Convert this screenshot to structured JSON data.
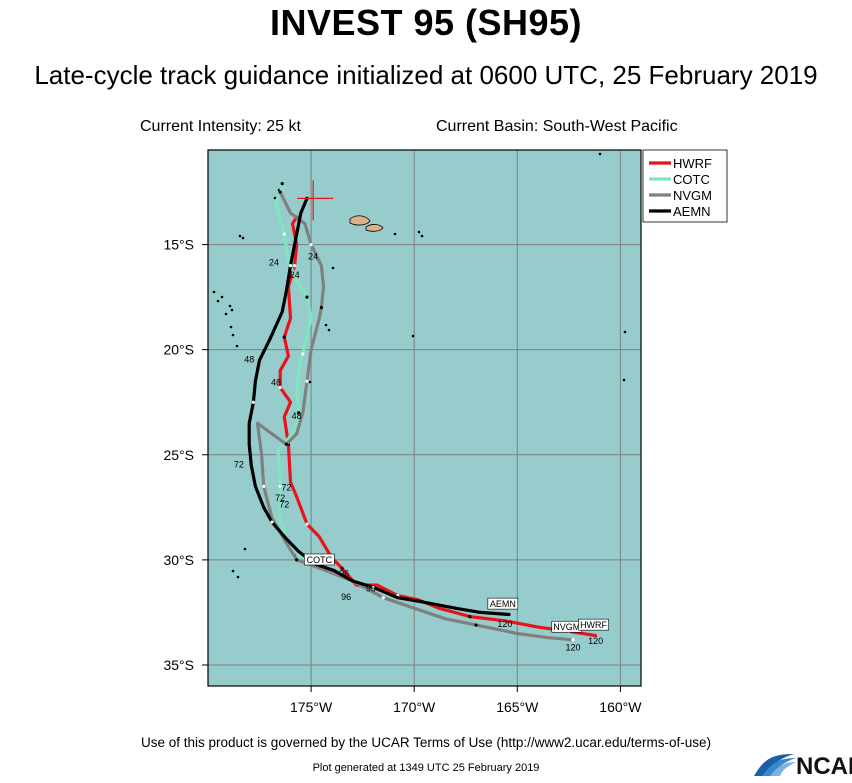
{
  "header": {
    "title": "INVEST 95 (SH95)",
    "subtitle": "Late-cycle track guidance initialized at 0600 UTC, 25 February 2019",
    "current_intensity": "Current Intensity: 25 kt",
    "current_basin": "Current Basin: South-West Pacific"
  },
  "footer": {
    "terms": "Use of this product is governed by the UCAR Terms of Use (http://www2.ucar.edu/terms-of-use)",
    "generated": "Plot generated at 1349 UTC 25 February 2019",
    "logo_text": "NCAR"
  },
  "colors": {
    "ocean": "#96cccc",
    "land": "#d9b28c",
    "grid": "#808080"
  },
  "chart_data": {
    "type": "line",
    "xlim": [
      -180,
      -159
    ],
    "ylim": [
      -36,
      -10.5
    ],
    "x_ticks": [
      -175,
      -170,
      -165,
      -160
    ],
    "x_tick_labels": [
      "175°W",
      "170°W",
      "165°W",
      "160°W"
    ],
    "y_ticks": [
      -15,
      -20,
      -25,
      -30,
      -35
    ],
    "y_tick_labels": [
      "15°S",
      "20°S",
      "25°S",
      "30°S",
      "35°S"
    ],
    "current_position": {
      "lon": -174.9,
      "lat": -12.8
    },
    "legend_position": "top-right",
    "series": [
      {
        "name": "HWRF",
        "color": "#e8141c",
        "points": [
          [
            -175.7,
            -13.7
          ],
          [
            -175.9,
            -14.0
          ],
          [
            -175.7,
            -15.0
          ],
          [
            -175.8,
            -16.0
          ],
          [
            -176.1,
            -17.0
          ],
          [
            -176.0,
            -18.5
          ],
          [
            -176.3,
            -19.4
          ],
          [
            -176.1,
            -20.3
          ],
          [
            -176.5,
            -21.0
          ],
          [
            -176.5,
            -21.8
          ],
          [
            -176.0,
            -22.5
          ],
          [
            -176.3,
            -23.2
          ],
          [
            -176.1,
            -24.5
          ],
          [
            -176.0,
            -26.3
          ],
          [
            -175.7,
            -27.0
          ],
          [
            -175.2,
            -28.3
          ],
          [
            -174.6,
            -28.9
          ],
          [
            -174.0,
            -29.9
          ],
          [
            -173.5,
            -30.4
          ],
          [
            -172.8,
            -31.2
          ],
          [
            -171.8,
            -31.2
          ],
          [
            -170.8,
            -31.7
          ],
          [
            -169.8,
            -31.9
          ],
          [
            -168.8,
            -32.3
          ],
          [
            -167.3,
            -32.7
          ],
          [
            -165.6,
            -32.9
          ],
          [
            -164.0,
            -33.2
          ],
          [
            -162.5,
            -33.4
          ],
          [
            -161.2,
            -33.6
          ]
        ],
        "hour_labels": [
          {
            "lon": -175.8,
            "lat": -16.6,
            "text": "24"
          },
          {
            "lon": -176.7,
            "lat": -21.7,
            "text": "48"
          },
          {
            "lon": -176.2,
            "lat": -26.7,
            "text": "72"
          },
          {
            "lon": -172.1,
            "lat": -31.5,
            "text": "96"
          },
          {
            "lon": -161.2,
            "lat": -34.0,
            "text": "120"
          }
        ]
      },
      {
        "name": "COTC",
        "color": "#7fe5c0",
        "points": [
          [
            -176.4,
            -12.1
          ],
          [
            -176.4,
            -12.3
          ],
          [
            -176.7,
            -13.0
          ],
          [
            -176.3,
            -14.5
          ],
          [
            -176.1,
            -15.8
          ],
          [
            -175.6,
            -16.9
          ],
          [
            -175.2,
            -17.5
          ],
          [
            -175.0,
            -18.5
          ],
          [
            -175.2,
            -19.3
          ],
          [
            -175.4,
            -20.2
          ],
          [
            -175.6,
            -21.0
          ],
          [
            -175.7,
            -22.0
          ],
          [
            -175.6,
            -23.0
          ],
          [
            -175.9,
            -24.0
          ],
          [
            -176.6,
            -24.8
          ],
          [
            -176.5,
            -26.5
          ],
          [
            -176.5,
            -28.0
          ],
          [
            -176.2,
            -29.0
          ],
          [
            -175.8,
            -29.8
          ],
          [
            -175.0,
            -30.0
          ]
        ],
        "hour_labels": [
          {
            "lon": -176.8,
            "lat": -16.0,
            "text": "24"
          },
          {
            "lon": -176.3,
            "lat": -27.5,
            "text": "72"
          }
        ],
        "tag": {
          "lon": -174.6,
          "lat": -30.1,
          "text": "COTC"
        }
      },
      {
        "name": "NVGM",
        "color": "#808080",
        "points": [
          [
            -176.5,
            -12.5
          ],
          [
            -176.0,
            -13.5
          ],
          [
            -175.3,
            -14.0
          ],
          [
            -175.0,
            -15.0
          ],
          [
            -174.5,
            -16.0
          ],
          [
            -174.4,
            -17.0
          ],
          [
            -174.5,
            -18.0
          ],
          [
            -174.6,
            -18.5
          ],
          [
            -175.0,
            -20.0
          ],
          [
            -175.2,
            -21.5
          ],
          [
            -175.4,
            -23.0
          ],
          [
            -175.7,
            -24.0
          ],
          [
            -176.2,
            -24.5
          ],
          [
            -177.6,
            -23.5
          ],
          [
            -177.4,
            -25.0
          ],
          [
            -177.3,
            -26.5
          ],
          [
            -176.9,
            -28.0
          ],
          [
            -176.2,
            -29.2
          ],
          [
            -175.7,
            -30.0
          ],
          [
            -174.3,
            -30.5
          ],
          [
            -173.0,
            -31.0
          ],
          [
            -171.5,
            -31.8
          ],
          [
            -170.0,
            -32.3
          ],
          [
            -168.5,
            -32.8
          ],
          [
            -167.0,
            -33.1
          ],
          [
            -165.0,
            -33.5
          ],
          [
            -163.5,
            -33.7
          ],
          [
            -162.3,
            -33.8
          ]
        ],
        "hour_labels": [
          {
            "lon": -174.9,
            "lat": -15.7,
            "text": "24"
          },
          {
            "lon": -175.7,
            "lat": -23.3,
            "text": "48"
          },
          {
            "lon": -176.5,
            "lat": -27.2,
            "text": "72"
          },
          {
            "lon": -173.4,
            "lat": -30.8,
            "text": "96"
          },
          {
            "lon": -162.3,
            "lat": -34.3,
            "text": "120"
          }
        ],
        "tag": {
          "lon": -162.6,
          "lat": -33.3,
          "text": "NVGM"
        }
      },
      {
        "name": "AEMN",
        "color": "#000000",
        "points": [
          [
            -175.2,
            -12.8
          ],
          [
            -175.5,
            -13.5
          ],
          [
            -175.8,
            -15.0
          ],
          [
            -176.0,
            -16.0
          ],
          [
            -176.2,
            -17.2
          ],
          [
            -176.4,
            -18.2
          ],
          [
            -177.0,
            -19.5
          ],
          [
            -177.5,
            -20.5
          ],
          [
            -177.7,
            -21.5
          ],
          [
            -177.8,
            -22.5
          ],
          [
            -178.0,
            -23.5
          ],
          [
            -178.0,
            -24.5
          ],
          [
            -177.9,
            -25.5
          ],
          [
            -177.7,
            -26.5
          ],
          [
            -177.3,
            -27.5
          ],
          [
            -176.9,
            -28.2
          ],
          [
            -176.2,
            -29.0
          ],
          [
            -175.6,
            -29.6
          ],
          [
            -174.8,
            -30.2
          ],
          [
            -173.9,
            -30.5
          ],
          [
            -173.0,
            -31.0
          ],
          [
            -172.0,
            -31.3
          ],
          [
            -170.8,
            -31.8
          ],
          [
            -169.6,
            -32.0
          ],
          [
            -168.0,
            -32.3
          ],
          [
            -166.8,
            -32.5
          ],
          [
            -165.4,
            -32.6
          ]
        ],
        "hour_labels": [
          {
            "lon": -178.0,
            "lat": -20.6,
            "text": "48"
          },
          {
            "lon": -178.5,
            "lat": -25.6,
            "text": "72"
          },
          {
            "lon": -173.3,
            "lat": -31.9,
            "text": "96"
          },
          {
            "lon": -165.6,
            "lat": -33.2,
            "text": "120"
          }
        ],
        "tag": {
          "lon": -165.7,
          "lat": -32.2,
          "text": "AEMN"
        },
        "extra_tag": {
          "lon": -161.3,
          "lat": -33.2,
          "text": "HWRF"
        }
      }
    ]
  }
}
